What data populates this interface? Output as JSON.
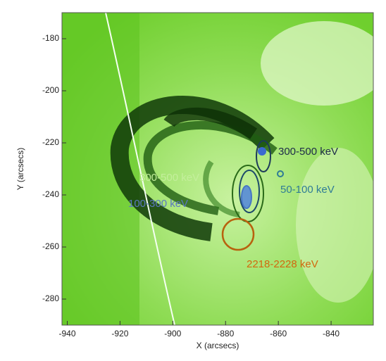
{
  "chart_data": {
    "type": "image",
    "x_label": "X (arcsecs)",
    "y_label": "Y (arcsecs)",
    "xlim": [
      -942,
      -824
    ],
    "ylim": [
      -290,
      -170
    ],
    "xticks": [
      -940,
      -920,
      -900,
      -880,
      -860,
      -840
    ],
    "yticks": [
      -180,
      -200,
      -220,
      -240,
      -260,
      -280
    ],
    "annotations": [
      {
        "text": "300-500 keV",
        "color": "#1c2a48"
      },
      {
        "text": "50-100 keV",
        "color": "#2f7c96"
      },
      {
        "text": "300-500 keV",
        "color": "#c4ef9c"
      },
      {
        "text": "100-300 keV",
        "color": "#5a78c0"
      },
      {
        "text": "2218-2228 keV",
        "color": "#d2680e"
      }
    ]
  }
}
